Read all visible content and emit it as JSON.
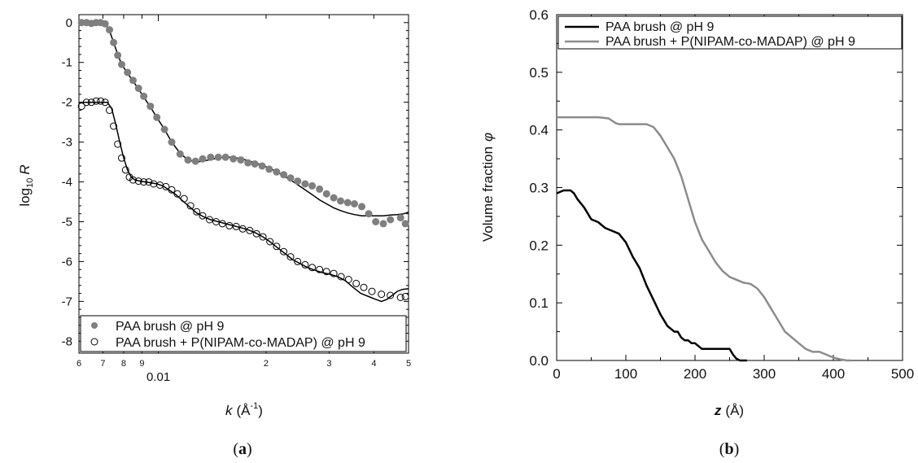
{
  "chart_data": [
    {
      "id": "a",
      "type": "scatter",
      "panel_label_open": "(",
      "panel_label_letter": "a",
      "panel_label_close": ")",
      "xscale": "log",
      "xlim": [
        0.006,
        0.05
      ],
      "ylim": [
        -8.3,
        0.2
      ],
      "ylabel_prefix": "log",
      "ylabel_sub": "10",
      "ylabel_var": "R",
      "xlabel_var": "k",
      "xlabel_unit": "(Å",
      "xlabel_sup": "-1",
      "xlabel_close": ")",
      "yticks": [
        0,
        -1,
        -2,
        -3,
        -4,
        -5,
        -6,
        -7,
        -8
      ],
      "xtick_labels": [
        {
          "x": 0.006,
          "label": "6"
        },
        {
          "x": 0.007,
          "label": "7"
        },
        {
          "x": 0.008,
          "label": "8"
        },
        {
          "x": 0.009,
          "label": "9"
        },
        {
          "x": 0.01,
          "label": "0.01"
        },
        {
          "x": 0.02,
          "label": "2"
        },
        {
          "x": 0.03,
          "label": "3"
        },
        {
          "x": 0.04,
          "label": "4"
        },
        {
          "x": 0.05,
          "label": "5"
        }
      ],
      "grid": false,
      "legend_position": "bottom",
      "series": [
        {
          "name": "PAA brush @ pH 9",
          "marker": "filled-circle",
          "color": "#7f7f7f",
          "x": [
            0.0061,
            0.0063,
            0.0065,
            0.0067,
            0.0069,
            0.0071,
            0.0073,
            0.0075,
            0.0077,
            0.0079,
            0.0082,
            0.0085,
            0.0088,
            0.0091,
            0.0095,
            0.0099,
            0.0104,
            0.0109,
            0.0115,
            0.0121,
            0.0127,
            0.0133,
            0.014,
            0.0147,
            0.0154,
            0.0162,
            0.017,
            0.0178,
            0.0186,
            0.0195,
            0.0204,
            0.0214,
            0.0224,
            0.0234,
            0.0245,
            0.0257,
            0.0269,
            0.0282,
            0.0295,
            0.0309,
            0.0323,
            0.0338,
            0.0353,
            0.037,
            0.0387,
            0.0405,
            0.0425,
            0.0445,
            0.0475,
            0.049
          ],
          "y": [
            0.0,
            0.0,
            -0.02,
            0.0,
            0.0,
            -0.03,
            -0.18,
            -0.5,
            -0.82,
            -1.05,
            -1.25,
            -1.45,
            -1.65,
            -1.85,
            -2.1,
            -2.38,
            -2.68,
            -3.0,
            -3.3,
            -3.45,
            -3.48,
            -3.42,
            -3.38,
            -3.38,
            -3.38,
            -3.42,
            -3.45,
            -3.52,
            -3.55,
            -3.6,
            -3.68,
            -3.75,
            -3.82,
            -3.9,
            -3.98,
            -4.05,
            -4.1,
            -4.18,
            -4.3,
            -4.4,
            -4.48,
            -4.52,
            -4.55,
            -4.62,
            -4.8,
            -5.0,
            -5.05,
            -4.95,
            -4.9,
            -5.05
          ]
        },
        {
          "name": "PAA brush + P(NIPAM-co-MADAP) @ pH 9",
          "marker": "open-circle",
          "color": "#000000",
          "x": [
            0.0061,
            0.0063,
            0.0065,
            0.0067,
            0.0069,
            0.0071,
            0.0073,
            0.0075,
            0.0077,
            0.0079,
            0.0081,
            0.0083,
            0.0085,
            0.0088,
            0.0091,
            0.0094,
            0.0097,
            0.0101,
            0.0105,
            0.0109,
            0.0113,
            0.0118,
            0.0123,
            0.0128,
            0.0133,
            0.0139,
            0.0145,
            0.0151,
            0.0158,
            0.0165,
            0.0172,
            0.018,
            0.0188,
            0.0196,
            0.0205,
            0.0214,
            0.0224,
            0.0234,
            0.0245,
            0.0257,
            0.0269,
            0.0282,
            0.0295,
            0.0309,
            0.0324,
            0.034,
            0.0357,
            0.0375,
            0.0395,
            0.042,
            0.0445,
            0.0475,
            0.049
          ],
          "y": [
            -2.1,
            -2.0,
            -2.0,
            -1.97,
            -1.97,
            -2.0,
            -2.2,
            -2.6,
            -3.05,
            -3.4,
            -3.7,
            -3.88,
            -3.95,
            -3.98,
            -4.0,
            -4.0,
            -4.05,
            -4.08,
            -4.12,
            -4.2,
            -4.3,
            -4.42,
            -4.6,
            -4.75,
            -4.85,
            -4.95,
            -5.0,
            -5.05,
            -5.1,
            -5.12,
            -5.18,
            -5.22,
            -5.3,
            -5.38,
            -5.5,
            -5.62,
            -5.75,
            -5.88,
            -6.0,
            -6.08,
            -6.15,
            -6.2,
            -6.25,
            -6.3,
            -6.38,
            -6.45,
            -6.55,
            -6.65,
            -6.75,
            -6.82,
            -6.85,
            -6.9,
            -6.88
          ]
        }
      ],
      "fits": [
        {
          "for": "PAA brush @ pH 9",
          "color": "#000000",
          "x": [
            0.006,
            0.0063,
            0.0066,
            0.0069,
            0.0071,
            0.0073,
            0.0075,
            0.0077,
            0.0079,
            0.0082,
            0.0085,
            0.0088,
            0.0091,
            0.0095,
            0.0099,
            0.0104,
            0.0109,
            0.0115,
            0.0121,
            0.0127,
            0.0133,
            0.014,
            0.0147,
            0.0154,
            0.0162,
            0.017,
            0.0178,
            0.0186,
            0.0195,
            0.0204,
            0.0214,
            0.0224,
            0.0234,
            0.0245,
            0.0257,
            0.0269,
            0.0282,
            0.0295,
            0.0309,
            0.0323,
            0.0338,
            0.0353,
            0.037,
            0.0387,
            0.0405,
            0.0425,
            0.0445,
            0.0465,
            0.0485,
            0.05
          ],
          "y": [
            0.0,
            0.0,
            0.0,
            0.0,
            -0.03,
            -0.2,
            -0.5,
            -0.8,
            -1.05,
            -1.27,
            -1.47,
            -1.67,
            -1.87,
            -2.12,
            -2.38,
            -2.68,
            -3.0,
            -3.28,
            -3.45,
            -3.5,
            -3.48,
            -3.44,
            -3.4,
            -3.38,
            -3.38,
            -3.42,
            -3.46,
            -3.52,
            -3.58,
            -3.65,
            -3.74,
            -3.85,
            -3.95,
            -4.07,
            -4.2,
            -4.32,
            -4.45,
            -4.55,
            -4.65,
            -4.72,
            -4.78,
            -4.82,
            -4.85,
            -4.85,
            -4.85,
            -4.85,
            -4.83,
            -4.82,
            -4.8,
            -4.76
          ]
        },
        {
          "for": "PAA brush + P(NIPAM-co-MADAP) @ pH 9",
          "color": "#000000",
          "x": [
            0.006,
            0.0063,
            0.0066,
            0.0069,
            0.0072,
            0.0074,
            0.0076,
            0.0078,
            0.008,
            0.0082,
            0.0084,
            0.0086,
            0.0089,
            0.0092,
            0.0095,
            0.0099,
            0.0103,
            0.0107,
            0.0112,
            0.0117,
            0.0122,
            0.0128,
            0.0134,
            0.014,
            0.0147,
            0.0154,
            0.0162,
            0.017,
            0.0178,
            0.0187,
            0.0196,
            0.0205,
            0.0215,
            0.0226,
            0.0237,
            0.0249,
            0.0261,
            0.0274,
            0.0288,
            0.0302,
            0.0317,
            0.0333,
            0.035,
            0.0368,
            0.0387,
            0.0405,
            0.042,
            0.0435,
            0.045,
            0.0465,
            0.048,
            0.05
          ],
          "y": [
            -2.0,
            -2.0,
            -2.0,
            -2.0,
            -2.0,
            -2.15,
            -2.55,
            -3.0,
            -3.4,
            -3.7,
            -3.88,
            -3.95,
            -3.98,
            -4.0,
            -4.02,
            -4.05,
            -4.1,
            -4.2,
            -4.32,
            -4.48,
            -4.62,
            -4.78,
            -4.88,
            -4.95,
            -5.0,
            -5.05,
            -5.1,
            -5.15,
            -5.2,
            -5.28,
            -5.38,
            -5.5,
            -5.65,
            -5.8,
            -5.95,
            -6.05,
            -6.15,
            -6.22,
            -6.28,
            -6.32,
            -6.38,
            -6.48,
            -6.65,
            -6.8,
            -6.88,
            -6.95,
            -7.0,
            -6.95,
            -6.85,
            -6.75,
            -6.7,
            -6.68
          ]
        }
      ]
    },
    {
      "id": "b",
      "type": "line",
      "panel_label_open": "(",
      "panel_label_letter": "b",
      "panel_label_close": ")",
      "xlim": [
        0,
        500
      ],
      "ylim": [
        0,
        0.6
      ],
      "xlabel_var": "z",
      "xlabel_unit": "(Å)",
      "ylabel_text": "Volume fraction",
      "ylabel_var": "φ",
      "xticks": [
        0,
        100,
        200,
        300,
        400,
        500
      ],
      "xtick_labels": [
        "0",
        "100",
        "200",
        "300",
        "400",
        "500"
      ],
      "yticks": [
        0,
        0.1,
        0.2,
        0.3,
        0.4,
        0.5,
        0.6
      ],
      "ytick_labels": [
        "0.0",
        "0.1",
        "0.2",
        "0.3",
        "0.4",
        "0.5",
        "0.6"
      ],
      "grid": false,
      "legend_position": "top-left",
      "series": [
        {
          "name": "PAA brush @ pH 9",
          "color": "#000000",
          "x": [
            0,
            10,
            20,
            25,
            30,
            40,
            50,
            60,
            70,
            80,
            90,
            100,
            110,
            120,
            130,
            140,
            150,
            160,
            170,
            175,
            180,
            185,
            190,
            195,
            200,
            210,
            220,
            230,
            240,
            250,
            255,
            260,
            265,
            270,
            275
          ],
          "y": [
            0.29,
            0.295,
            0.295,
            0.29,
            0.28,
            0.265,
            0.245,
            0.24,
            0.23,
            0.225,
            0.22,
            0.205,
            0.18,
            0.16,
            0.13,
            0.105,
            0.08,
            0.06,
            0.05,
            0.05,
            0.04,
            0.035,
            0.035,
            0.03,
            0.03,
            0.02,
            0.02,
            0.02,
            0.02,
            0.02,
            0.01,
            0.003,
            0.0,
            0.0,
            0.0
          ]
        },
        {
          "name": "PAA brush + P(NIPAM-co-MADAP) @ pH 9",
          "color": "#8c8c8c",
          "x": [
            0,
            20,
            40,
            60,
            75,
            85,
            90,
            100,
            110,
            120,
            130,
            140,
            150,
            160,
            170,
            180,
            190,
            200,
            210,
            220,
            230,
            240,
            250,
            260,
            270,
            280,
            290,
            300,
            310,
            320,
            330,
            340,
            350,
            360,
            370,
            380,
            390,
            400,
            410,
            420,
            425
          ],
          "y": [
            0.422,
            0.422,
            0.422,
            0.422,
            0.42,
            0.412,
            0.41,
            0.41,
            0.41,
            0.41,
            0.41,
            0.405,
            0.39,
            0.37,
            0.35,
            0.32,
            0.28,
            0.24,
            0.21,
            0.19,
            0.17,
            0.155,
            0.145,
            0.14,
            0.135,
            0.133,
            0.125,
            0.11,
            0.09,
            0.07,
            0.05,
            0.04,
            0.03,
            0.02,
            0.015,
            0.015,
            0.01,
            0.005,
            0.002,
            0.0,
            0.0
          ]
        }
      ]
    }
  ]
}
